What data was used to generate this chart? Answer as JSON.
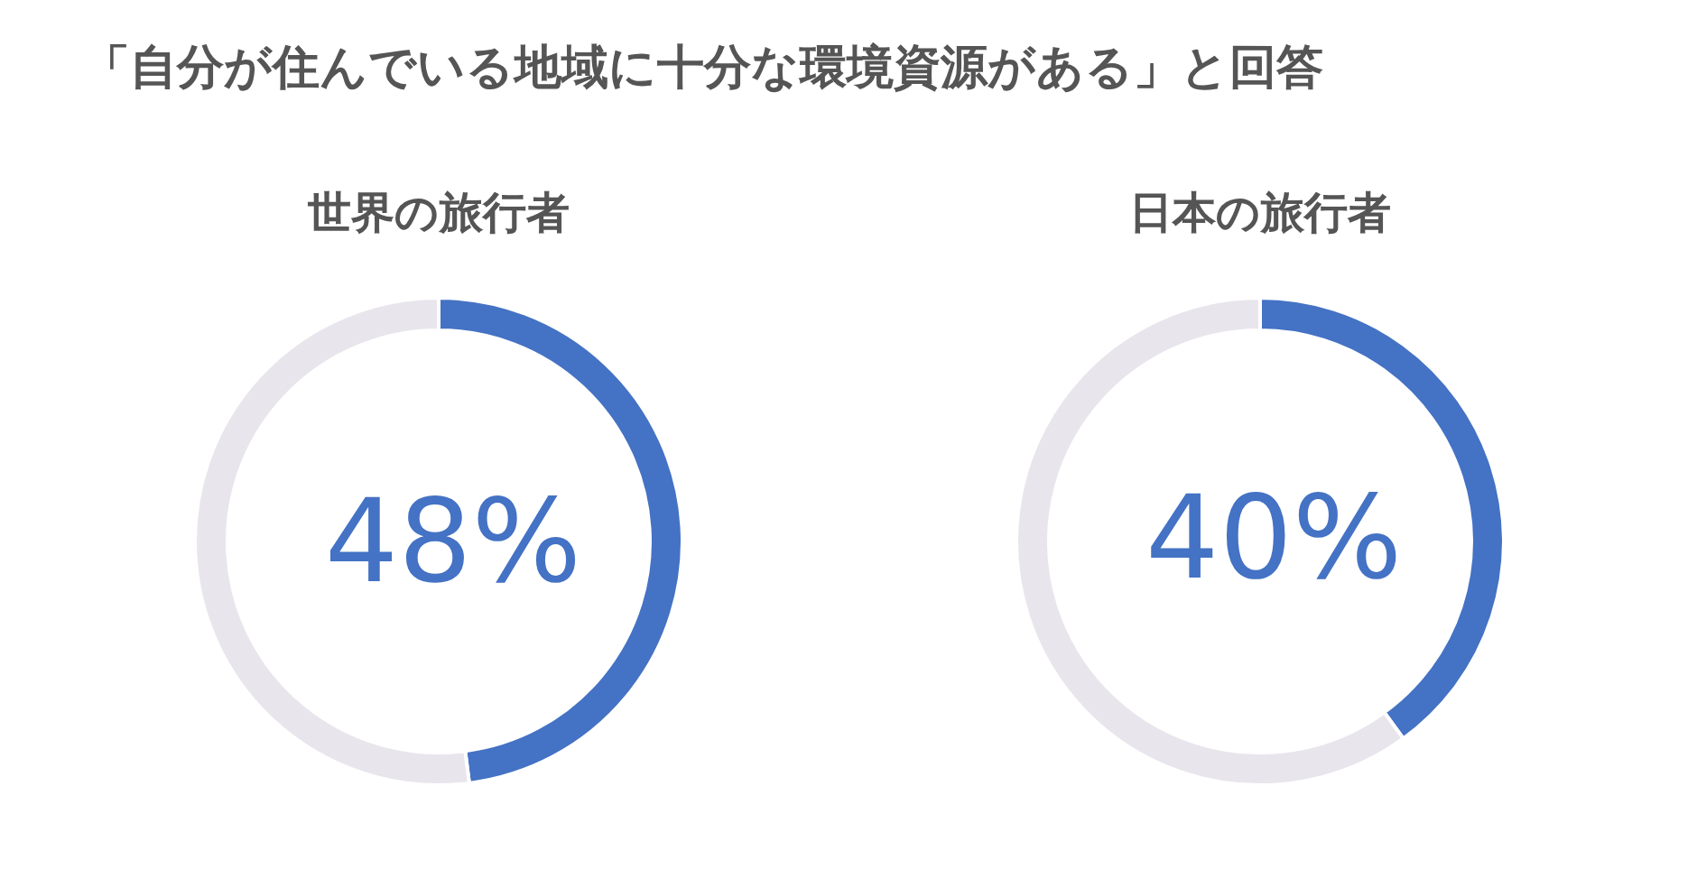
{
  "chart_data": [
    {
      "type": "other",
      "title": "「自分が住んでいる地域に十分な環境資源がある」と回答"
    },
    {
      "type": "donut",
      "title": "世界の旅行者",
      "categories": [
        null,
        null
      ],
      "values": [
        48,
        52
      ],
      "colors": [
        "#4472c4",
        "#e8e6ec"
      ],
      "value_labels": [
        "48%",
        null
      ]
    },
    {
      "type": "donut",
      "title": "日本の旅行者",
      "categories": [
        null,
        null
      ],
      "values": [
        40,
        60
      ],
      "colors": [
        "#4472c4",
        "#e8e6ec"
      ],
      "value_labels": [
        "40%",
        null
      ]
    }
  ]
}
